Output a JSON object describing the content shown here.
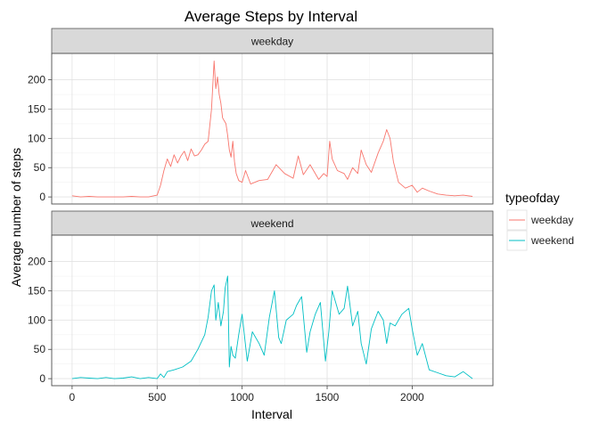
{
  "chart_data": {
    "type": "line",
    "title": "Average Steps by Interval",
    "xlabel": "Interval",
    "ylabel": "Average number of steps",
    "xlim": [
      -120,
      2475
    ],
    "ylim": [
      -12,
      245
    ],
    "x_ticks": [
      0,
      500,
      1000,
      1500,
      2000
    ],
    "y_ticks": [
      0,
      50,
      100,
      150,
      200
    ],
    "grid": true,
    "legend": {
      "title": "typeofday",
      "position": "right"
    },
    "facets": [
      "weekday",
      "weekend"
    ],
    "series": [
      {
        "name": "weekday",
        "facet": "weekday",
        "color": "#F8766D",
        "x": [
          0,
          50,
          100,
          150,
          200,
          250,
          300,
          350,
          400,
          450,
          500,
          520,
          540,
          560,
          580,
          600,
          620,
          640,
          660,
          680,
          700,
          720,
          740,
          760,
          780,
          800,
          820,
          835,
          845,
          855,
          865,
          875,
          885,
          895,
          905,
          915,
          925,
          935,
          945,
          955,
          965,
          980,
          1000,
          1020,
          1050,
          1100,
          1150,
          1200,
          1250,
          1300,
          1330,
          1360,
          1400,
          1450,
          1480,
          1500,
          1515,
          1530,
          1560,
          1600,
          1620,
          1650,
          1680,
          1700,
          1730,
          1760,
          1800,
          1830,
          1850,
          1870,
          1890,
          1920,
          1960,
          2000,
          2030,
          2060,
          2100,
          2150,
          2200,
          2250,
          2300,
          2355
        ],
        "y": [
          2,
          0,
          1,
          0,
          0,
          0,
          0,
          1,
          0,
          0,
          3,
          20,
          45,
          65,
          52,
          72,
          58,
          70,
          78,
          62,
          82,
          70,
          72,
          80,
          90,
          95,
          150,
          232,
          185,
          205,
          175,
          160,
          135,
          130,
          125,
          105,
          80,
          68,
          95,
          60,
          40,
          28,
          25,
          45,
          22,
          28,
          30,
          55,
          40,
          32,
          70,
          38,
          55,
          30,
          40,
          35,
          95,
          65,
          45,
          40,
          30,
          50,
          40,
          80,
          55,
          42,
          75,
          95,
          115,
          100,
          60,
          25,
          15,
          20,
          8,
          15,
          10,
          5,
          3,
          2,
          3,
          1
        ]
      },
      {
        "name": "weekend",
        "facet": "weekend",
        "color": "#00BFC4",
        "x": [
          0,
          50,
          100,
          150,
          200,
          250,
          300,
          350,
          400,
          450,
          500,
          520,
          540,
          560,
          600,
          650,
          700,
          740,
          780,
          800,
          820,
          835,
          845,
          860,
          875,
          890,
          900,
          915,
          925,
          935,
          945,
          960,
          980,
          1000,
          1030,
          1060,
          1100,
          1130,
          1160,
          1190,
          1215,
          1230,
          1260,
          1300,
          1320,
          1350,
          1380,
          1400,
          1430,
          1460,
          1490,
          1510,
          1530,
          1550,
          1570,
          1600,
          1620,
          1650,
          1680,
          1700,
          1730,
          1760,
          1800,
          1830,
          1850,
          1870,
          1900,
          1940,
          1980,
          2000,
          2030,
          2060,
          2100,
          2150,
          2200,
          2250,
          2300,
          2355
        ],
        "y": [
          0,
          2,
          1,
          0,
          2,
          0,
          1,
          3,
          0,
          2,
          0,
          8,
          2,
          12,
          15,
          20,
          30,
          50,
          75,
          105,
          150,
          160,
          100,
          130,
          90,
          115,
          155,
          175,
          20,
          55,
          40,
          35,
          75,
          110,
          30,
          80,
          60,
          40,
          105,
          150,
          70,
          60,
          100,
          110,
          125,
          140,
          45,
          80,
          110,
          130,
          30,
          80,
          150,
          130,
          110,
          120,
          158,
          90,
          115,
          60,
          25,
          85,
          115,
          100,
          60,
          95,
          90,
          110,
          120,
          85,
          40,
          60,
          15,
          10,
          5,
          3,
          12,
          0
        ]
      }
    ]
  }
}
